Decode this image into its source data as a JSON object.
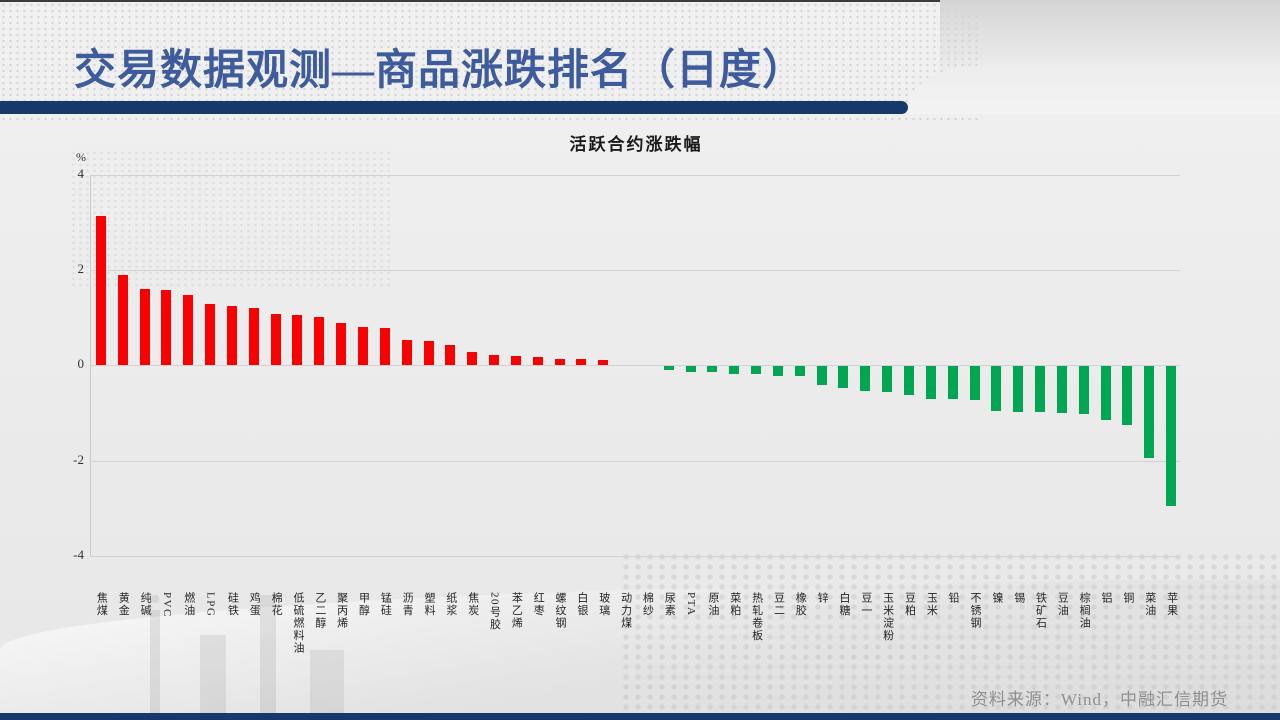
{
  "slide": {
    "title": "交易数据观测—商品涨跌排名（日度）",
    "source": "资料来源：Wind，中融汇信期货"
  },
  "chart_data": {
    "type": "bar",
    "title": "活跃合约涨跌幅",
    "unit_label": "%",
    "ylabel": "%",
    "xlabel": "",
    "ylim": [
      -4,
      4
    ],
    "yticks": [
      4,
      2,
      0,
      -2,
      -4
    ],
    "grid": true,
    "legend": "none",
    "colors": {
      "positive": "#fa0000",
      "negative": "#00a651"
    },
    "categories": [
      "焦煤",
      "黄金",
      "纯碱",
      "PVC",
      "燃油",
      "LPG",
      "硅铁",
      "鸡蛋",
      "棉花",
      "低硫燃料油",
      "乙二醇",
      "聚丙烯",
      "甲醇",
      "锰硅",
      "沥青",
      "塑料",
      "纸浆",
      "焦炭",
      "20号胶",
      "苯乙烯",
      "红枣",
      "螺纹钢",
      "白银",
      "玻璃",
      "动力煤",
      "棉纱",
      "尿素",
      "PTA",
      "原油",
      "菜粕",
      "热轧卷板",
      "豆二",
      "橡胶",
      "锌",
      "白糖",
      "豆一",
      "玉米淀粉",
      "豆粕",
      "玉米",
      "铅",
      "不锈钢",
      "镍",
      "锡",
      "铁矿石",
      "豆油",
      "棕榈油",
      "铝",
      "铜",
      "菜油",
      "苹果"
    ],
    "values": [
      3.13,
      1.9,
      1.61,
      1.58,
      1.47,
      1.28,
      1.24,
      1.21,
      1.07,
      1.05,
      1.02,
      0.9,
      0.81,
      0.78,
      0.54,
      0.52,
      0.43,
      0.29,
      0.21,
      0.2,
      0.17,
      0.14,
      0.13,
      0.11,
      0.02,
      -0.02,
      -0.08,
      -0.11,
      -0.12,
      -0.15,
      -0.17,
      -0.2,
      -0.21,
      -0.4,
      -0.45,
      -0.52,
      -0.53,
      -0.6,
      -0.68,
      -0.69,
      -0.7,
      -0.93,
      -0.95,
      -0.96,
      -0.97,
      -1.0,
      -1.13,
      -1.24,
      -1.93,
      -2.94
    ]
  }
}
